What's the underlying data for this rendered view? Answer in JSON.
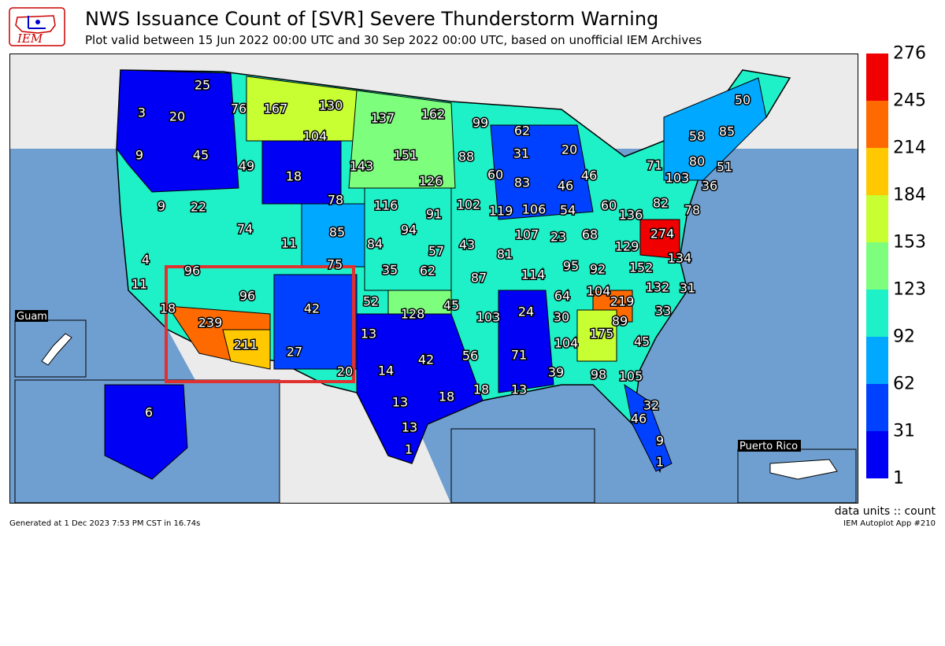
{
  "header": {
    "title": "NWS Issuance Count of [SVR] Severe Thunderstorm Warning",
    "subtitle": "Plot valid between 15 Jun 2022 00:00 UTC and 30 Sep 2022 00:00 UTC, based on unofficial IEM Archives"
  },
  "logo": {
    "text": "IEM",
    "icon": "iem-logo-icon"
  },
  "footer": {
    "units": "data units :: count",
    "generated": "Generated at 1 Dec 2023 7:53 PM CST in 16.74s",
    "app": "IEM Autoplot App #210"
  },
  "insets": {
    "guam": "Guam",
    "puerto_rico": "Puerto Rico"
  },
  "colorbar": {
    "labels": [
      "1",
      "31",
      "62",
      "92",
      "123",
      "153",
      "184",
      "214",
      "245",
      "276"
    ],
    "colors": [
      "#0000f5",
      "#0040ff",
      "#00a8ff",
      "#1ef0c8",
      "#7dff7d",
      "#c8ff32",
      "#ffc800",
      "#ff6a00",
      "#f00000"
    ]
  },
  "highlight_color": "#e03030",
  "wfo_counts": [
    {
      "label": "25",
      "value": 25
    },
    {
      "label": "3",
      "value": 3
    },
    {
      "label": "20",
      "value": 20
    },
    {
      "label": "76",
      "value": 76
    },
    {
      "label": "167",
      "value": 167
    },
    {
      "label": "130",
      "value": 130
    },
    {
      "label": "137",
      "value": 137
    },
    {
      "label": "162",
      "value": 162
    },
    {
      "label": "99",
      "value": 99
    },
    {
      "label": "62",
      "value": 62
    },
    {
      "label": "20",
      "value": 20
    },
    {
      "label": "50",
      "value": 50
    },
    {
      "label": "85",
      "value": 85
    },
    {
      "label": "58",
      "value": 58
    },
    {
      "label": "104",
      "value": 104
    },
    {
      "label": "9",
      "value": 9
    },
    {
      "label": "45",
      "value": 45
    },
    {
      "label": "49",
      "value": 49
    },
    {
      "label": "18",
      "value": 18
    },
    {
      "label": "143",
      "value": 143
    },
    {
      "label": "151",
      "value": 151
    },
    {
      "label": "88",
      "value": 88
    },
    {
      "label": "31",
      "value": 31
    },
    {
      "label": "71",
      "value": 71
    },
    {
      "label": "80",
      "value": 80
    },
    {
      "label": "51",
      "value": 51
    },
    {
      "label": "126",
      "value": 126
    },
    {
      "label": "60",
      "value": 60
    },
    {
      "label": "83",
      "value": 83
    },
    {
      "label": "46",
      "value": 46
    },
    {
      "label": "46",
      "value": 46
    },
    {
      "label": "103",
      "value": 103
    },
    {
      "label": "36",
      "value": 36
    },
    {
      "label": "9",
      "value": 9
    },
    {
      "label": "22",
      "value": 22
    },
    {
      "label": "78",
      "value": 78
    },
    {
      "label": "116",
      "value": 116
    },
    {
      "label": "91",
      "value": 91
    },
    {
      "label": "102",
      "value": 102
    },
    {
      "label": "119",
      "value": 119
    },
    {
      "label": "106",
      "value": 106
    },
    {
      "label": "54",
      "value": 54
    },
    {
      "label": "60",
      "value": 60
    },
    {
      "label": "136",
      "value": 136
    },
    {
      "label": "82",
      "value": 82
    },
    {
      "label": "78",
      "value": 78
    },
    {
      "label": "74",
      "value": 74
    },
    {
      "label": "85",
      "value": 85
    },
    {
      "label": "94",
      "value": 94
    },
    {
      "label": "107",
      "value": 107
    },
    {
      "label": "23",
      "value": 23
    },
    {
      "label": "68",
      "value": 68
    },
    {
      "label": "274",
      "value": 274
    },
    {
      "label": "4",
      "value": 4
    },
    {
      "label": "11",
      "value": 11
    },
    {
      "label": "84",
      "value": 84
    },
    {
      "label": "57",
      "value": 57
    },
    {
      "label": "43",
      "value": 43
    },
    {
      "label": "81",
      "value": 81
    },
    {
      "label": "129",
      "value": 129
    },
    {
      "label": "134",
      "value": 134
    },
    {
      "label": "96",
      "value": 96
    },
    {
      "label": "75",
      "value": 75
    },
    {
      "label": "35",
      "value": 35
    },
    {
      "label": "62",
      "value": 62
    },
    {
      "label": "87",
      "value": 87
    },
    {
      "label": "95",
      "value": 95
    },
    {
      "label": "92",
      "value": 92
    },
    {
      "label": "152",
      "value": 152
    },
    {
      "label": "114",
      "value": 114
    },
    {
      "label": "11",
      "value": 11
    },
    {
      "label": "96",
      "value": 96
    },
    {
      "label": "52",
      "value": 52
    },
    {
      "label": "132",
      "value": 132
    },
    {
      "label": "31",
      "value": 31
    },
    {
      "label": "104",
      "value": 104
    },
    {
      "label": "64",
      "value": 64
    },
    {
      "label": "18",
      "value": 18
    },
    {
      "label": "42",
      "value": 42
    },
    {
      "label": "128",
      "value": 128
    },
    {
      "label": "45",
      "value": 45
    },
    {
      "label": "219",
      "value": 219
    },
    {
      "label": "239",
      "value": 239
    },
    {
      "label": "103",
      "value": 103
    },
    {
      "label": "24",
      "value": 24
    },
    {
      "label": "30",
      "value": 30
    },
    {
      "label": "89",
      "value": 89
    },
    {
      "label": "33",
      "value": 33
    },
    {
      "label": "13",
      "value": 13
    },
    {
      "label": "175",
      "value": 175
    },
    {
      "label": "211",
      "value": 211
    },
    {
      "label": "104",
      "value": 104
    },
    {
      "label": "45",
      "value": 45
    },
    {
      "label": "27",
      "value": 27
    },
    {
      "label": "71",
      "value": 71
    },
    {
      "label": "56",
      "value": 56
    },
    {
      "label": "42",
      "value": 42
    },
    {
      "label": "20",
      "value": 20
    },
    {
      "label": "14",
      "value": 14
    },
    {
      "label": "39",
      "value": 39
    },
    {
      "label": "98",
      "value": 98
    },
    {
      "label": "105",
      "value": 105
    },
    {
      "label": "6",
      "value": 6
    },
    {
      "label": "13",
      "value": 13
    },
    {
      "label": "18",
      "value": 18
    },
    {
      "label": "18",
      "value": 18
    },
    {
      "label": "13",
      "value": 13
    },
    {
      "label": "32",
      "value": 32
    },
    {
      "label": "46",
      "value": 46
    },
    {
      "label": "13",
      "value": 13
    },
    {
      "label": "9",
      "value": 9
    },
    {
      "label": "1",
      "value": 1
    },
    {
      "label": "1",
      "value": 1
    }
  ]
}
